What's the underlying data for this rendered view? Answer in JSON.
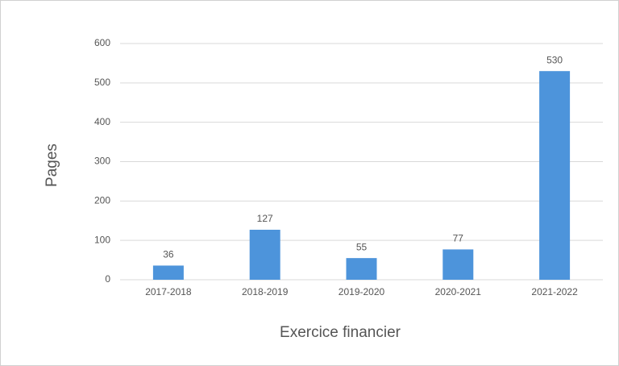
{
  "chart_data": {
    "type": "bar",
    "x_label": "Exercice financier",
    "y_label": "Pages",
    "categories": [
      "2017-2018",
      "2018-2019",
      "2019-2020",
      "2020-2021",
      "2021-2022"
    ],
    "values": [
      36,
      127,
      55,
      77,
      530
    ],
    "color": "#4d94db",
    "ylim": [
      0,
      600
    ],
    "yticks": [
      0,
      100,
      200,
      300,
      400,
      500,
      600
    ],
    "grid": true,
    "data_labels": true
  }
}
